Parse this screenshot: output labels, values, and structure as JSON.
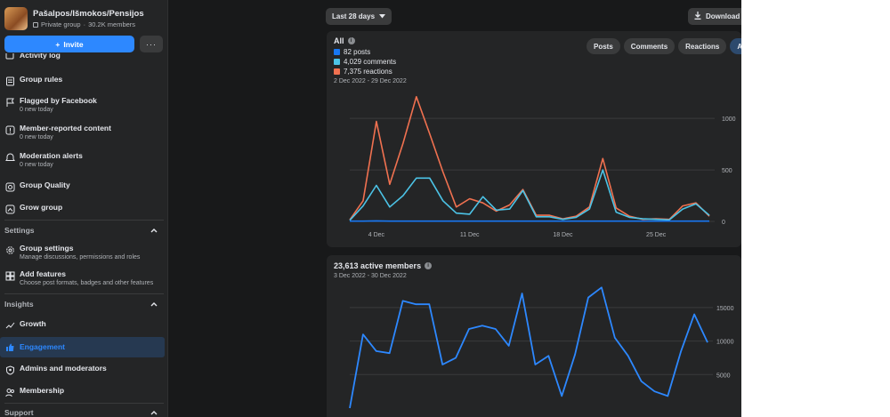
{
  "group": {
    "name": "Pašalpos/Išmokos/Pensijos",
    "privacy": "Private group",
    "members": "30.2K members",
    "invite_label": "Invite",
    "more_label": "···"
  },
  "nav": {
    "activity_log": "Activity log",
    "group_rules": "Group rules",
    "flagged": {
      "title": "Flagged by Facebook",
      "sub": "0 new today"
    },
    "member_reported": {
      "title": "Member-reported content",
      "sub": "0 new today"
    },
    "moderation_alerts": {
      "title": "Moderation alerts",
      "sub": "0 new today"
    },
    "group_quality": "Group Quality",
    "grow_group": "Grow group",
    "settings_header": "Settings",
    "group_settings": {
      "title": "Group settings",
      "sub": "Manage discussions, permissions and roles"
    },
    "add_features": {
      "title": "Add features",
      "sub": "Choose post formats, badges and other features"
    },
    "insights_header": "Insights",
    "growth": "Growth",
    "engagement": "Engagement",
    "admins": "Admins and moderators",
    "membership": "Membership",
    "support_header": "Support"
  },
  "toolbar": {
    "range_label": "Last 28 days",
    "download_label": "Download"
  },
  "engagement_card": {
    "title": "All",
    "legend": [
      {
        "label": "82 posts",
        "color": "#1877f2"
      },
      {
        "label": "4,029 comments",
        "color": "#4cc3e6"
      },
      {
        "label": "7,375 reactions",
        "color": "#f07150"
      }
    ],
    "date_range": "2 Dec 2022 - 29 Dec 2022",
    "filters": [
      "Posts",
      "Comments",
      "Reactions",
      "All"
    ],
    "active_filter": "All"
  },
  "members_card": {
    "title": "23,613 active members",
    "date_range": "3 Dec 2022 - 30 Dec 2022"
  },
  "chart_data": [
    {
      "type": "line",
      "x": [
        "2 Dec",
        "3 Dec",
        "4 Dec",
        "5 Dec",
        "6 Dec",
        "7 Dec",
        "8 Dec",
        "9 Dec",
        "10 Dec",
        "11 Dec",
        "12 Dec",
        "13 Dec",
        "14 Dec",
        "15 Dec",
        "16 Dec",
        "17 Dec",
        "18 Dec",
        "19 Dec",
        "20 Dec",
        "21 Dec",
        "22 Dec",
        "23 Dec",
        "24 Dec",
        "25 Dec",
        "26 Dec",
        "27 Dec",
        "28 Dec",
        "29 Dec"
      ],
      "xticks": [
        "4 Dec",
        "11 Dec",
        "18 Dec",
        "25 Dec"
      ],
      "yticks": [
        "0",
        "500",
        "1000"
      ],
      "ylim": [
        0,
        1200
      ],
      "series": [
        {
          "name": "posts",
          "color": "#1877f2",
          "values": [
            3,
            3,
            5,
            3,
            3,
            3,
            3,
            3,
            3,
            3,
            3,
            3,
            3,
            3,
            3,
            3,
            3,
            3,
            3,
            3,
            3,
            3,
            3,
            3,
            3,
            3,
            3,
            3
          ]
        },
        {
          "name": "comments",
          "color": "#4cc3e6",
          "values": [
            10,
            150,
            350,
            140,
            250,
            420,
            420,
            200,
            80,
            70,
            240,
            110,
            120,
            300,
            45,
            45,
            20,
            40,
            120,
            500,
            90,
            40,
            25,
            20,
            15,
            120,
            170,
            60
          ]
        },
        {
          "name": "reactions",
          "color": "#f07150",
          "values": [
            15,
            200,
            970,
            360,
            760,
            1210,
            850,
            480,
            140,
            220,
            180,
            100,
            160,
            310,
            60,
            60,
            25,
            50,
            140,
            610,
            130,
            50,
            20,
            25,
            20,
            150,
            180,
            50
          ]
        }
      ]
    },
    {
      "type": "line",
      "x": [
        "3 Dec",
        "4 Dec",
        "5 Dec",
        "6 Dec",
        "7 Dec",
        "8 Dec",
        "9 Dec",
        "10 Dec",
        "11 Dec",
        "12 Dec",
        "13 Dec",
        "14 Dec",
        "15 Dec",
        "16 Dec",
        "17 Dec",
        "18 Dec",
        "19 Dec",
        "20 Dec",
        "21 Dec",
        "22 Dec",
        "23 Dec",
        "24 Dec",
        "25 Dec",
        "26 Dec",
        "27 Dec",
        "28 Dec",
        "29 Dec",
        "30 Dec"
      ],
      "yticks": [
        "5000",
        "10000",
        "15000"
      ],
      "ylim": [
        0,
        19500
      ],
      "series": [
        {
          "name": "active members",
          "color": "#2d88ff",
          "values": [
            0,
            11000,
            8500,
            8200,
            16000,
            15500,
            15500,
            6500,
            7500,
            11800,
            12300,
            11800,
            9300,
            17100,
            6500,
            7800,
            1800,
            8000,
            16500,
            18000,
            10500,
            7800,
            4000,
            2500,
            1800,
            8500,
            14000,
            9800
          ]
        }
      ]
    }
  ]
}
